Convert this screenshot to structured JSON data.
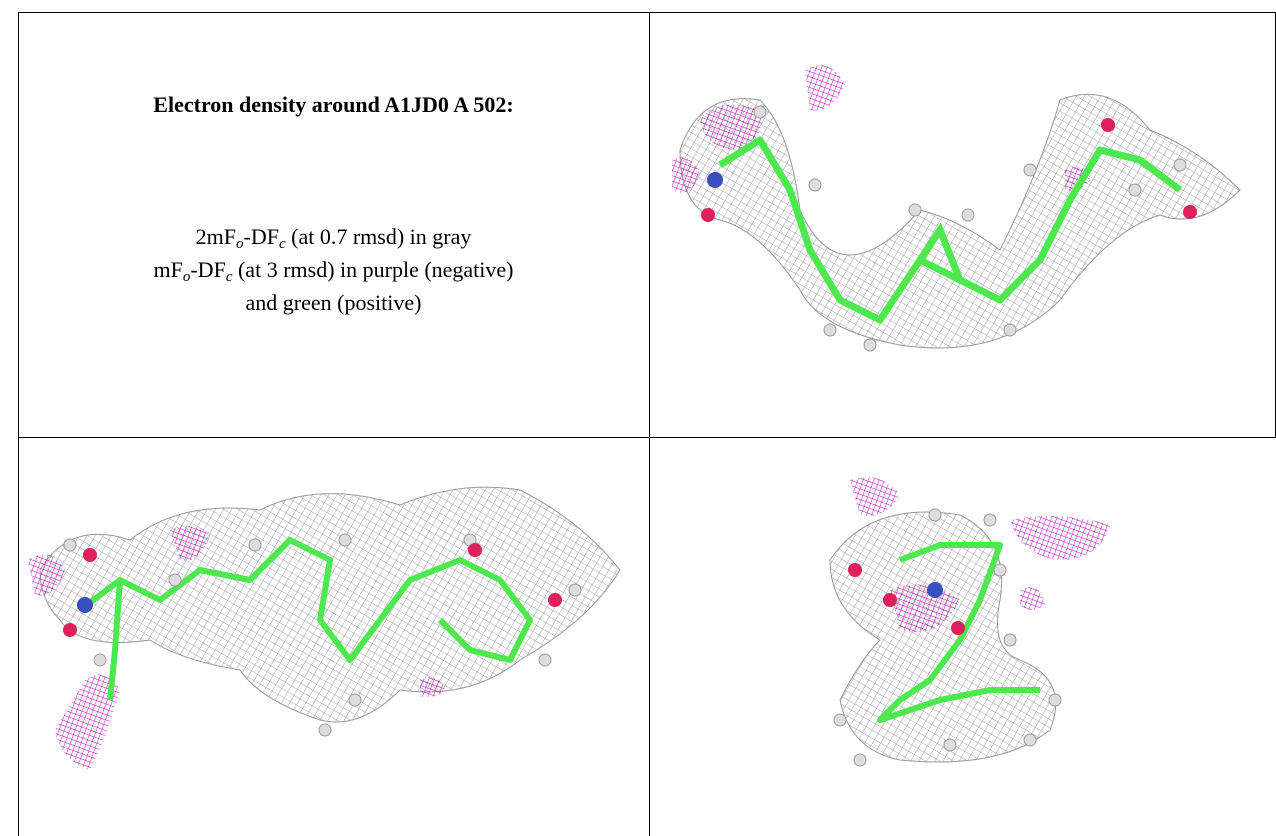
{
  "title": "Electron density around A1JD0 A 502:",
  "legend_lines": [
    [
      "2mF",
      "o",
      "-DF",
      "c",
      " (at 0.7 rmsd) in gray"
    ],
    [
      "mF",
      "o",
      "-DF",
      "c",
      " (at 3 rmsd) in purple (negative)"
    ],
    [
      "and green (positive)"
    ]
  ]
}
